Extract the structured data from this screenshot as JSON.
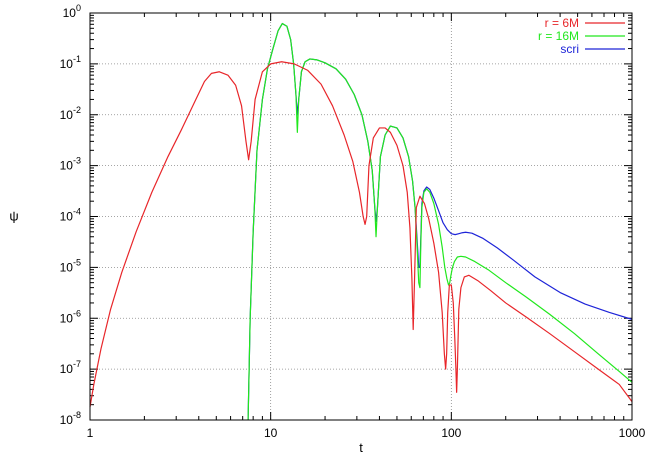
{
  "chart_data": {
    "type": "line",
    "title": "",
    "xlabel": "t",
    "ylabel": "ψ",
    "xscale": "log",
    "yscale": "log",
    "xlim": [
      1,
      1000
    ],
    "ylim": [
      1e-08,
      1
    ],
    "grid": true,
    "legend_placement": "top-right",
    "x_ticks": [
      {
        "value": 1,
        "label": "1"
      },
      {
        "value": 10,
        "label": "10"
      },
      {
        "value": 100,
        "label": "100"
      },
      {
        "value": 1000,
        "label": "1000"
      }
    ],
    "y_ticks": [
      {
        "value": 1e-08,
        "base": "10",
        "exp": "-8"
      },
      {
        "value": 1e-07,
        "base": "10",
        "exp": "-7"
      },
      {
        "value": 1e-06,
        "base": "10",
        "exp": "-6"
      },
      {
        "value": 1e-05,
        "base": "10",
        "exp": "-5"
      },
      {
        "value": 0.0001,
        "base": "10",
        "exp": "-4"
      },
      {
        "value": 0.001,
        "base": "10",
        "exp": "-3"
      },
      {
        "value": 0.01,
        "base": "10",
        "exp": "-2"
      },
      {
        "value": 0.1,
        "base": "10",
        "exp": "-1"
      },
      {
        "value": 1,
        "base": "10",
        "exp": "0"
      }
    ],
    "series": [
      {
        "name": "r = 6M",
        "color": "#e8262a",
        "x": [
          1,
          1.05,
          1.15,
          1.3,
          1.5,
          1.8,
          2.2,
          2.7,
          3.2,
          3.8,
          4.3,
          4.7,
          5.2,
          5.8,
          6.4,
          6.9,
          7.3,
          7.55,
          7.8,
          8.2,
          9.0,
          10.0,
          11.5,
          13.5,
          16,
          19,
          22,
          25.5,
          28.5,
          31,
          32.5,
          33.3,
          34,
          35,
          37,
          40,
          43,
          46,
          50,
          54,
          57,
          59,
          60.5,
          61.5,
          62.5,
          64,
          67,
          71,
          75,
          80,
          85,
          89,
          91.5,
          93,
          94.2,
          95.5,
          97.5,
          100,
          102.5,
          104.5,
          106,
          107,
          108,
          110,
          113,
          118,
          125,
          140,
          165,
          200,
          260,
          350,
          480,
          650,
          850,
          1000
        ],
        "y": [
          1.8e-08,
          5e-08,
          2.5e-07,
          1.5e-06,
          8e-06,
          5e-05,
          0.0003,
          0.0015,
          0.005,
          0.018,
          0.045,
          0.065,
          0.07,
          0.06,
          0.038,
          0.015,
          0.003,
          0.0013,
          0.003,
          0.02,
          0.07,
          0.1,
          0.11,
          0.1,
          0.075,
          0.04,
          0.015,
          0.004,
          0.0012,
          0.0003,
          0.0001,
          7e-05,
          0.0001,
          0.001,
          0.0035,
          0.0055,
          0.0055,
          0.0045,
          0.0025,
          0.001,
          0.0003,
          6e-05,
          6e-06,
          6e-07,
          5e-06,
          0.00015,
          0.00025,
          0.00018,
          9e-05,
          3e-05,
          8e-06,
          1.3e-06,
          2e-07,
          1e-07,
          2e-07,
          1.3e-06,
          4.5e-06,
          4.5e-06,
          2e-06,
          4e-07,
          1e-07,
          3.5e-08,
          1e-07,
          1.5e-06,
          4e-06,
          6.5e-06,
          7e-06,
          5.5e-06,
          3.5e-06,
          2e-06,
          1.05e-06,
          5e-07,
          2.2e-07,
          1e-07,
          5e-08,
          2.3e-08
        ]
      },
      {
        "name": "r = 16M",
        "color": "#21e81d",
        "x": [
          7.5,
          7.7,
          8,
          8.4,
          9,
          9.6,
          10.3,
          11.0,
          11.6,
          12.3,
          12.9,
          13.4,
          13.8,
          14.05,
          14.3,
          14.8,
          15.5,
          16.5,
          18,
          20,
          23,
          26,
          29,
          32,
          34.5,
          36.5,
          37.7,
          38.3,
          39,
          40.5,
          43,
          46,
          50,
          54,
          58,
          61,
          63,
          64.5,
          66,
          67,
          67.8,
          68.7,
          70.5,
          73,
          76,
          80,
          85,
          89,
          92,
          94.5,
          96.5,
          98,
          99.5,
          101.5,
          104,
          108,
          113,
          120,
          135,
          160,
          200,
          260,
          350,
          480,
          650,
          850,
          1000
        ],
        "y": [
          1e-08,
          1e-06,
          5e-05,
          0.002,
          0.02,
          0.08,
          0.2,
          0.45,
          0.62,
          0.55,
          0.3,
          0.1,
          0.025,
          0.0045,
          0.02,
          0.07,
          0.11,
          0.125,
          0.12,
          0.105,
          0.08,
          0.05,
          0.025,
          0.01,
          0.003,
          0.0008,
          0.00015,
          4e-05,
          0.00015,
          0.0015,
          0.004,
          0.006,
          0.0055,
          0.0035,
          0.0015,
          0.0005,
          0.00015,
          3e-05,
          5e-06,
          4e-06,
          3e-05,
          0.00015,
          0.0003,
          0.00035,
          0.0003,
          0.00018,
          7e-05,
          2.5e-05,
          1e-05,
          6e-06,
          4.5e-06,
          5e-06,
          7e-06,
          1e-05,
          1.3e-05,
          1.6e-05,
          1.65e-05,
          1.6e-05,
          1.3e-05,
          9e-06,
          5e-06,
          2.6e-06,
          1.2e-06,
          5e-07,
          2e-07,
          9e-08,
          5.5e-08
        ]
      },
      {
        "name": "scri",
        "color": "#1e24d8",
        "x": [
          7.5,
          7.7,
          8,
          8.4,
          9,
          9.6,
          10.3,
          11.0,
          11.6,
          12.3,
          12.9,
          13.4,
          13.8,
          14.05,
          14.3,
          14.8,
          15.5,
          16.5,
          18,
          20,
          23,
          26,
          29,
          32,
          34.5,
          36.5,
          37.7,
          38.3,
          39,
          40.5,
          43,
          46,
          50,
          54,
          58,
          61,
          63,
          64.5,
          66,
          67,
          67.8,
          68.7,
          70.5,
          73,
          76,
          80,
          85,
          90,
          95,
          100,
          105,
          110,
          115,
          120,
          130,
          150,
          180,
          220,
          290,
          400,
          550,
          750,
          1000
        ],
        "y": [
          1e-08,
          1e-06,
          5e-05,
          0.002,
          0.02,
          0.08,
          0.2,
          0.45,
          0.62,
          0.55,
          0.3,
          0.1,
          0.025,
          0.01,
          0.02,
          0.07,
          0.11,
          0.125,
          0.12,
          0.105,
          0.08,
          0.05,
          0.025,
          0.01,
          0.003,
          0.0008,
          0.00015,
          8e-05,
          0.00015,
          0.0015,
          0.004,
          0.006,
          0.0055,
          0.0035,
          0.0015,
          0.0005,
          0.00015,
          4e-05,
          1e-05,
          1e-05,
          4e-05,
          0.00018,
          0.00032,
          0.00038,
          0.00034,
          0.00023,
          0.00013,
          7.5e-05,
          5.5e-05,
          4.6e-05,
          4.4e-05,
          4.6e-05,
          4.8e-05,
          4.9e-05,
          4.7e-05,
          3.7e-05,
          2.4e-05,
          1.4e-05,
          6.5e-06,
          3.2e-06,
          1.9e-06,
          1.3e-06,
          9.5e-07
        ]
      }
    ]
  }
}
